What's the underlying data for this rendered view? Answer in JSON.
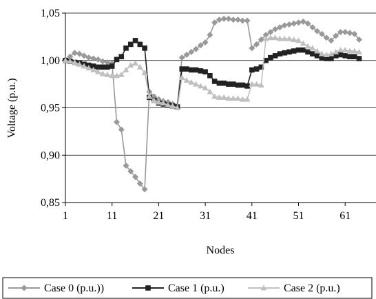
{
  "chart_data": {
    "type": "line",
    "title": "",
    "xlabel": "Nodes",
    "ylabel": "Voltage (p.u.)",
    "xlim": [
      1,
      64
    ],
    "ylim": [
      0.85,
      1.05
    ],
    "x_ticks": [
      {
        "value": 1,
        "label": "1"
      },
      {
        "value": 11,
        "label": "11"
      },
      {
        "value": 21,
        "label": "21"
      },
      {
        "value": 31,
        "label": "31"
      },
      {
        "value": 41,
        "label": "41"
      },
      {
        "value": 51,
        "label": "51"
      },
      {
        "value": 61,
        "label": "61"
      }
    ],
    "y_ticks": [
      {
        "value": 0.85,
        "label": "0,85"
      },
      {
        "value": 0.9,
        "label": "0,90"
      },
      {
        "value": 0.95,
        "label": "0,95"
      },
      {
        "value": 1.0,
        "label": "1,00"
      },
      {
        "value": 1.05,
        "label": "1,05"
      }
    ],
    "grid": "horizontal",
    "legend_position": "bottom",
    "x": [
      1,
      2,
      3,
      4,
      5,
      6,
      7,
      8,
      9,
      10,
      11,
      12,
      13,
      14,
      15,
      16,
      17,
      18,
      19,
      20,
      21,
      22,
      23,
      24,
      25,
      26,
      27,
      28,
      29,
      30,
      31,
      32,
      33,
      34,
      35,
      36,
      37,
      38,
      39,
      40,
      41,
      42,
      43,
      44,
      45,
      46,
      47,
      48,
      49,
      50,
      51,
      52,
      53,
      54,
      55,
      56,
      57,
      58,
      59,
      60,
      61,
      62,
      63,
      64
    ],
    "series": [
      {
        "name": "Case 0 (p.u.))",
        "color": "#999999",
        "marker": "diamond",
        "values": [
          1.001,
          1.004,
          1.008,
          1.007,
          1.005,
          1.003,
          1.002,
          1.001,
          0.999,
          0.998,
          0.997,
          0.935,
          0.927,
          0.889,
          0.883,
          0.877,
          0.87,
          0.864,
          0.967,
          0.962,
          0.959,
          0.957,
          0.956,
          0.954,
          0.952,
          1.003,
          1.006,
          1.009,
          1.012,
          1.016,
          1.019,
          1.027,
          1.04,
          1.043,
          1.044,
          1.044,
          1.043,
          1.043,
          1.042,
          1.042,
          1.013,
          1.017,
          1.022,
          1.027,
          1.03,
          1.033,
          1.035,
          1.037,
          1.038,
          1.039,
          1.04,
          1.041,
          1.039,
          1.035,
          1.031,
          1.028,
          1.024,
          1.021,
          1.026,
          1.03,
          1.03,
          1.029,
          1.028,
          1.022
        ]
      },
      {
        "name": "Case 1 (p.u.)",
        "color": "#222222",
        "marker": "square",
        "values": [
          1.0,
          0.999,
          0.998,
          0.997,
          0.996,
          0.995,
          0.994,
          0.993,
          0.993,
          0.993,
          0.994,
          1.001,
          1.004,
          1.013,
          1.017,
          1.021,
          1.017,
          1.013,
          0.961,
          0.958,
          0.955,
          0.954,
          0.953,
          0.952,
          0.951,
          0.991,
          0.991,
          0.99,
          0.99,
          0.989,
          0.988,
          0.984,
          0.978,
          0.976,
          0.976,
          0.975,
          0.975,
          0.974,
          0.974,
          0.973,
          0.99,
          0.991,
          0.993,
          1.0,
          1.003,
          1.005,
          1.007,
          1.008,
          1.009,
          1.01,
          1.011,
          1.011,
          1.009,
          1.007,
          1.005,
          1.003,
          1.002,
          1.002,
          1.005,
          1.006,
          1.005,
          1.004,
          1.004,
          1.002
        ]
      },
      {
        "name": "Case 2 (p.u.)",
        "color": "#c0c0c0",
        "marker": "triangle",
        "values": [
          1.0,
          0.999,
          0.998,
          0.996,
          0.994,
          0.992,
          0.99,
          0.988,
          0.986,
          0.985,
          0.984,
          0.984,
          0.985,
          0.99,
          0.995,
          0.997,
          0.993,
          0.987,
          0.962,
          0.958,
          0.956,
          0.955,
          0.953,
          0.952,
          0.95,
          0.982,
          0.979,
          0.977,
          0.975,
          0.973,
          0.971,
          0.967,
          0.962,
          0.961,
          0.961,
          0.96,
          0.96,
          0.96,
          0.959,
          0.959,
          0.975,
          0.975,
          0.974,
          1.023,
          1.024,
          1.024,
          1.023,
          1.023,
          1.023,
          1.022,
          1.021,
          1.018,
          1.015,
          1.013,
          1.01,
          1.007,
          1.006,
          1.007,
          1.009,
          1.011,
          1.011,
          1.01,
          1.01,
          1.009
        ]
      }
    ]
  }
}
